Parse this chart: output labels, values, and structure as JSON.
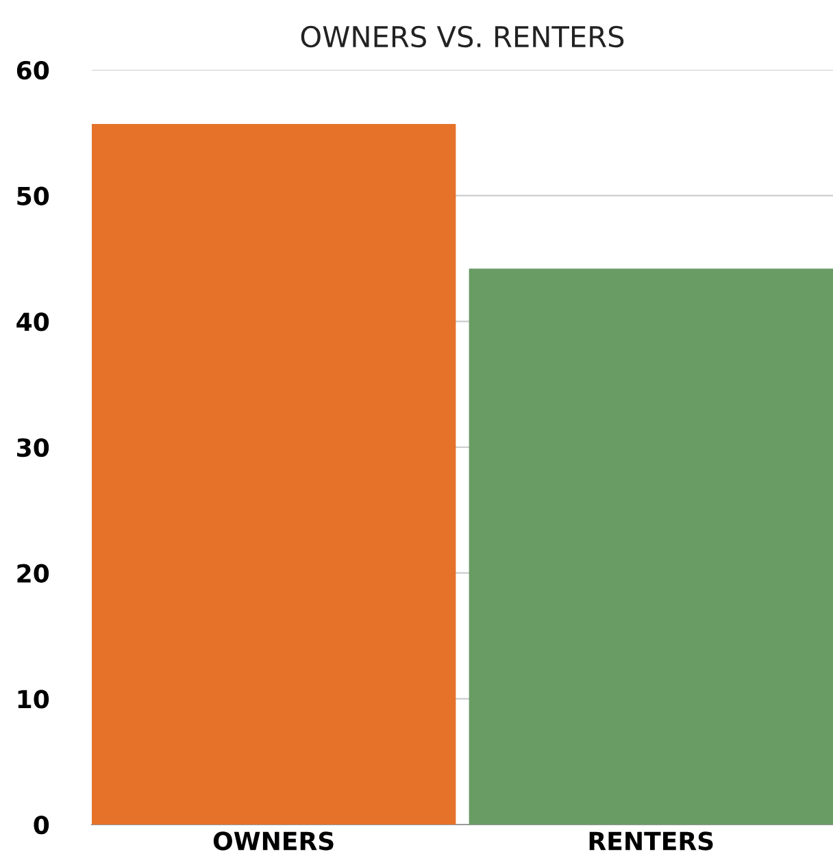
{
  "chart_data": {
    "type": "bar",
    "title": "OWNERS VS. RENTERS",
    "categories": [
      "OWNERS",
      "RENTERS"
    ],
    "values": [
      55.7,
      44.2
    ],
    "colors": [
      "#e6722a",
      "#699c64"
    ],
    "ylim": [
      0,
      60
    ],
    "yticks": [
      0,
      10,
      20,
      30,
      40,
      50,
      60
    ],
    "grid": "y",
    "legend": false
  }
}
